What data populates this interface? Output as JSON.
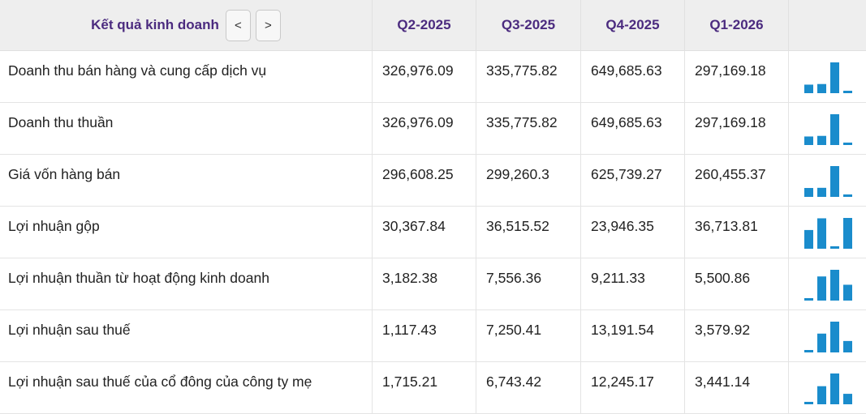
{
  "header": {
    "title": "Kết quả kinh doanh",
    "prev_label": "<",
    "next_label": ">",
    "periods": [
      "Q2-2025",
      "Q3-2025",
      "Q4-2025",
      "Q1-2026"
    ]
  },
  "rows": [
    {
      "label": "Doanh thu bán hàng và cung cấp dịch vụ",
      "values": [
        "326,976.09",
        "335,775.82",
        "649,685.63",
        "297,169.18"
      ],
      "chart": [
        326976.09,
        335775.82,
        649685.63,
        297169.18
      ]
    },
    {
      "label": "Doanh thu thuần",
      "values": [
        "326,976.09",
        "335,775.82",
        "649,685.63",
        "297,169.18"
      ],
      "chart": [
        326976.09,
        335775.82,
        649685.63,
        297169.18
      ]
    },
    {
      "label": "Giá vốn hàng bán",
      "values": [
        "296,608.25",
        "299,260.3",
        "625,739.27",
        "260,455.37"
      ],
      "chart": [
        296608.25,
        299260.3,
        625739.27,
        260455.37
      ]
    },
    {
      "label": "Lợi nhuận gộp",
      "values": [
        "30,367.84",
        "36,515.52",
        "23,946.35",
        "36,713.81"
      ],
      "chart": [
        30367.84,
        36515.52,
        23946.35,
        36713.81
      ]
    },
    {
      "label": "Lợi nhuận thuần từ hoạt động kinh doanh",
      "values": [
        "3,182.38",
        "7,556.36",
        "9,211.33",
        "5,500.86"
      ],
      "chart": [
        3182.38,
        7556.36,
        9211.33,
        5500.86
      ]
    },
    {
      "label": "Lợi nhuận sau thuế",
      "values": [
        "1,117.43",
        "7,250.41",
        "13,191.54",
        "3,579.92"
      ],
      "chart": [
        1117.43,
        7250.41,
        13191.54,
        3579.92
      ]
    },
    {
      "label": "Lợi nhuận sau thuế của cổ đông của công ty mẹ",
      "values": [
        "1,715.21",
        "6,743.42",
        "12,245.17",
        "3,441.14"
      ],
      "chart": [
        1715.21,
        6743.42,
        12245.17,
        3441.14
      ]
    }
  ],
  "colors": {
    "title": "#4b2b7f",
    "bar": "#1a8ccc",
    "header_bg": "#eeeeee"
  }
}
